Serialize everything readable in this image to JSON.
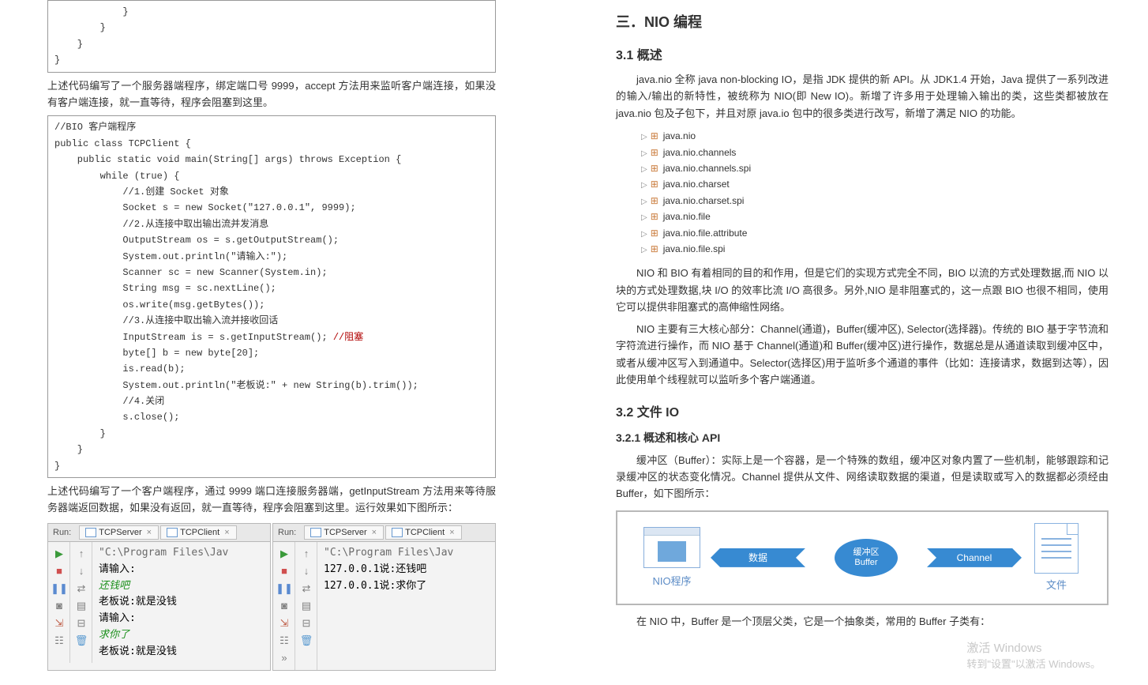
{
  "left": {
    "code1_lines": [
      "            }",
      "        }",
      "    }",
      "}"
    ],
    "para1": "上述代码编写了一个服务器端程序，绑定端口号 9999，accept 方法用来监听客户端连接，如果没有客户端连接，就一直等待，程序会阻塞到这里。",
    "code2_lines": [
      "//BIO 客户端程序",
      "public class TCPClient {",
      "    public static void main(String[] args) throws Exception {",
      "        while (true) {",
      "            //1.创建 Socket 对象",
      "            Socket s = new Socket(\"127.0.0.1\", 9999);",
      "            //2.从连接中取出输出流并发消息",
      "            OutputStream os = s.getOutputStream();",
      "            System.out.println(\"请输入:\");",
      "            Scanner sc = new Scanner(System.in);",
      "            String msg = sc.nextLine();",
      "            os.write(msg.getBytes());",
      "            //3.从连接中取出输入流并接收回话",
      "            InputStream is = s.getInputStream(); ",
      "            byte[] b = new byte[20];",
      "            is.read(b);",
      "            System.out.println(\"老板说:\" + new String(b).trim());",
      "            //4.关闭",
      "            s.close();",
      "        }",
      "    }",
      "}"
    ],
    "code2_comment": "//阻塞",
    "para2": "上述代码编写了一个客户端程序，通过 9999 端口连接服务器端，getInputStream 方法用来等待服务器端返回数据，如果没有返回，就一直等待，程序会阻塞到这里。运行效果如下图所示：",
    "run": {
      "label": "Run:",
      "tab_server": "TCPServer",
      "tab_client": "TCPClient",
      "gutter_icons_col1": [
        "▶",
        "■",
        "❚❚",
        "◙",
        "⇲",
        "☷"
      ],
      "gutter_icons_col2": [
        "↑",
        "↓",
        "⇄",
        "▤",
        "⊟",
        "🗑"
      ],
      "panel1_lines": [
        {
          "text": "\"C:\\Program Files\\Jav",
          "cls": "grey"
        },
        {
          "text": "请输入:",
          "cls": "black"
        },
        {
          "text": "还钱吧",
          "cls": "green"
        },
        {
          "text": "老板说:就是没钱",
          "cls": "black"
        },
        {
          "text": "请输入:",
          "cls": "black"
        },
        {
          "text": "求你了",
          "cls": "green"
        },
        {
          "text": "老板说:就是没钱",
          "cls": "black"
        }
      ],
      "panel2_lines": [
        {
          "text": "\"C:\\Program Files\\Jav",
          "cls": "grey"
        },
        {
          "text": "127.0.0.1说:还钱吧",
          "cls": "black"
        },
        {
          "text": "127.0.0.1说:求你了",
          "cls": "black"
        }
      ],
      "gutter2_extra": "»"
    }
  },
  "right": {
    "title3": "三．NIO 编程",
    "title31": "3.1  概述",
    "para31": "java.nio 全称 java non-blocking IO，是指 JDK 提供的新 API。从 JDK1.4 开始，Java 提供了一系列改进的输入/输出的新特性，被统称为 NIO(即 New IO)。新增了许多用于处理输入输出的类，这些类都被放在 java.nio 包及子包下，并且对原 java.io 包中的很多类进行改写，新增了满足 NIO 的功能。",
    "packages": [
      "java.nio",
      "java.nio.channels",
      "java.nio.channels.spi",
      "java.nio.charset",
      "java.nio.charset.spi",
      "java.nio.file",
      "java.nio.file.attribute",
      "java.nio.file.spi"
    ],
    "para32": "NIO 和 BIO 有着相同的目的和作用，但是它们的实现方式完全不同，BIO 以流的方式处理数据,而 NIO 以块的方式处理数据,块 I/O 的效率比流 I/O 高很多。另外,NIO 是非阻塞式的，这一点跟 BIO 也很不相同，使用它可以提供非阻塞式的高伸缩性网络。",
    "para33": "NIO 主要有三大核心部分：Channel(通道)，Buffer(缓冲区), Selector(选择器)。传统的 BIO 基于字节流和字符流进行操作，而 NIO 基于 Channel(通道)和 Buffer(缓冲区)进行操作，数据总是从通道读取到缓冲区中，或者从缓冲区写入到通道中。Selector(选择区)用于监听多个通道的事件（比如：连接请求，数据到达等），因此使用单个线程就可以监听多个客户端通道。",
    "title32": "3.2  文件 IO",
    "title321": "3.2.1 概述和核心 API",
    "para34": "缓冲区（Buffer）：实际上是一个容器，是一个特殊的数组，缓冲区对象内置了一些机制，能够跟踪和记录缓冲区的状态变化情况。Channel 提供从文件、网络读取数据的渠道，但是读取或写入的数据都必须经由 Buffer，如下图所示：",
    "diagram": {
      "nio_label": "NIO程序",
      "data_label": "数据",
      "buffer_label_cn": "缓冲区",
      "buffer_label_en": "Buffer",
      "channel_label": "Channel",
      "file_label": "文件",
      "colors": {
        "arrow_fill": "#378ad2",
        "arrow_text": "#ffffff",
        "nio_border": "#88aedb",
        "nio_block": "#6fa8dc",
        "file_border": "#8ab3e0",
        "box_border": "#b8b8b8",
        "label_color": "#5c8cc6"
      }
    },
    "para35": "在 NIO 中，Buffer 是一个顶层父类，它是一个抽象类，常用的 Buffer 子类有："
  },
  "watermark": {
    "line1": "激活 Windows",
    "line2": "转到\"设置\"以激活 Windows。"
  }
}
